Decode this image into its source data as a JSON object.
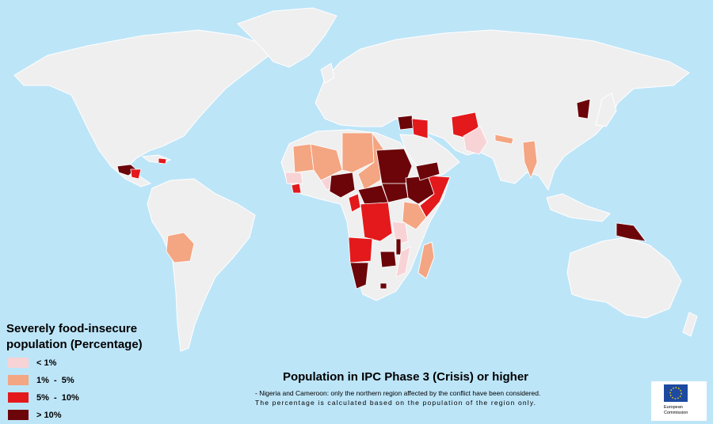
{
  "title": "Population in IPC Phase 3 (Crisis) or higher",
  "legend": {
    "title_lines": [
      "Severely food-insecure",
      "population (Percentage)"
    ],
    "items": [
      {
        "label": "< 1%",
        "color": "#f8d3d6"
      },
      {
        "label": "1%  -  5%",
        "color": "#f4a582"
      },
      {
        "label": "5%  -  10%",
        "color": "#e3191c"
      },
      {
        "label": "> 10%",
        "color": "#6b0509"
      }
    ]
  },
  "notes": [
    "- Nigeria and Cameroon: only the northern region affected by the conflict have been considered.",
    "The percentage is calculated based on the population of the region only."
  ],
  "logo": {
    "lines": [
      "European",
      "Commission"
    ]
  }
}
